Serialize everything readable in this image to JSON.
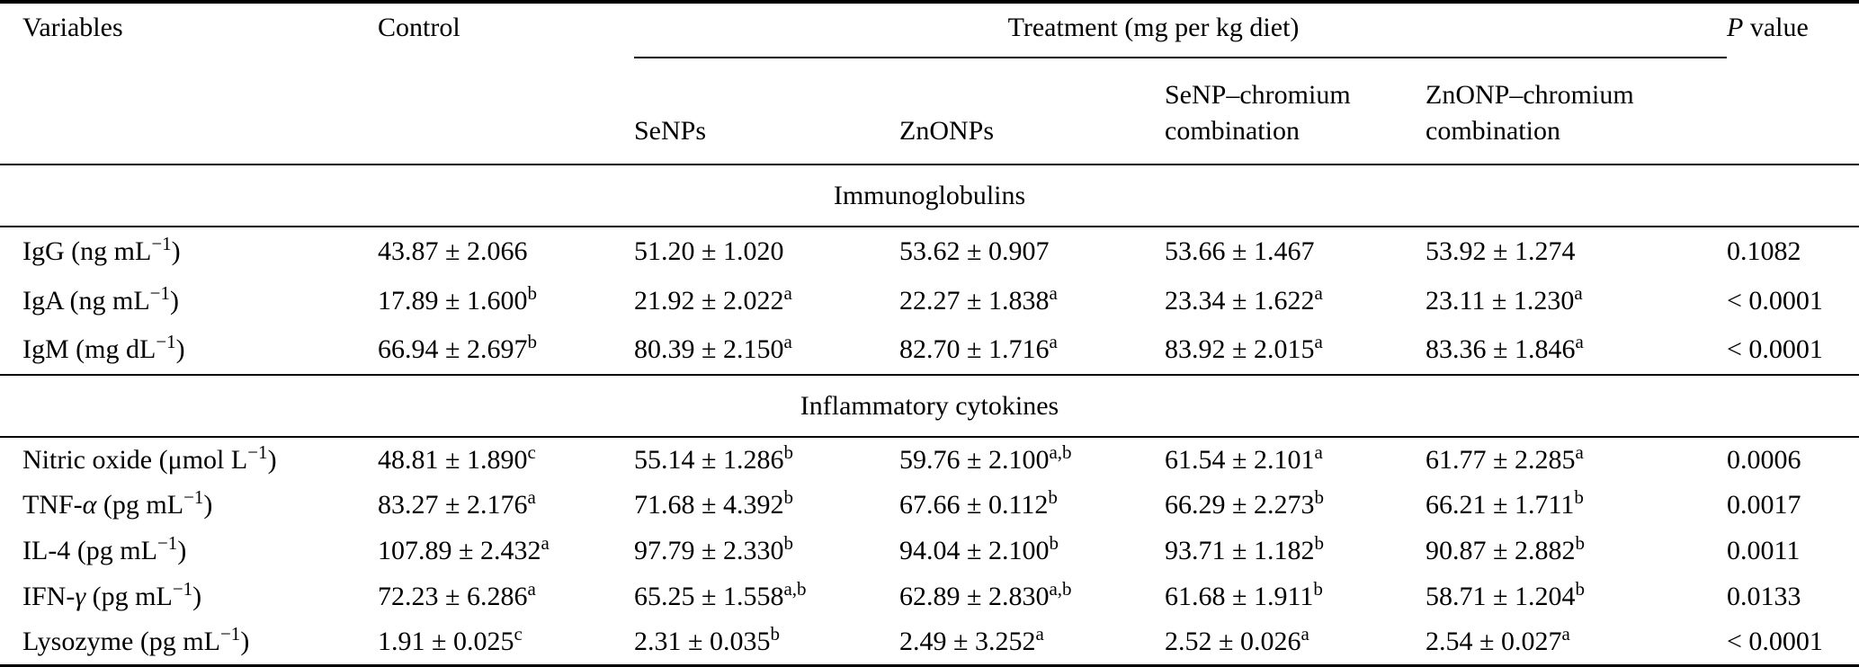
{
  "table": {
    "header": {
      "variables": "Variables",
      "control": "Control",
      "treatment": "Treatment (mg per kg diet)",
      "subcols": [
        "SeNPs",
        "ZnONPs",
        "SeNP–chromium combination",
        "ZnONP–chromium combination"
      ],
      "p_italic": "P",
      "p_word": "value"
    },
    "sections": [
      {
        "title": "Immunoglobulins",
        "rows": [
          {
            "label_parts": [
              {
                "t": "IgG"
              }
            ],
            "unit_open": " (ng mL",
            "unit_exp": "−1",
            "unit_close": ")",
            "cells": [
              {
                "v": "43.87 ± 2.066",
                "sup": ""
              },
              {
                "v": "51.20 ± 1.020",
                "sup": ""
              },
              {
                "v": "53.62 ± 0.907",
                "sup": ""
              },
              {
                "v": "53.66 ± 1.467",
                "sup": ""
              },
              {
                "v": "53.92 ± 1.274",
                "sup": ""
              }
            ],
            "p": "0.1082"
          },
          {
            "label_parts": [
              {
                "t": "IgA"
              }
            ],
            "unit_open": " (ng mL",
            "unit_exp": "−1",
            "unit_close": ")",
            "cells": [
              {
                "v": "17.89 ± 1.600",
                "sup": "b"
              },
              {
                "v": "21.92 ± 2.022",
                "sup": "a"
              },
              {
                "v": "22.27 ± 1.838",
                "sup": "a"
              },
              {
                "v": "23.34 ± 1.622",
                "sup": "a"
              },
              {
                "v": "23.11 ± 1.230",
                "sup": "a"
              }
            ],
            "p": "< 0.0001"
          },
          {
            "label_parts": [
              {
                "t": "IgM"
              }
            ],
            "unit_open": " (mg dL",
            "unit_exp": "−1",
            "unit_close": ")",
            "cells": [
              {
                "v": "66.94 ± 2.697",
                "sup": "b"
              },
              {
                "v": "80.39 ± 2.150",
                "sup": "a"
              },
              {
                "v": "82.70 ± 1.716",
                "sup": "a"
              },
              {
                "v": "83.92 ± 2.015",
                "sup": "a"
              },
              {
                "v": "83.36 ± 1.846",
                "sup": "a"
              }
            ],
            "p": "< 0.0001"
          }
        ]
      },
      {
        "title": "Inflammatory cytokines",
        "rows": [
          {
            "label_parts": [
              {
                "t": "Nitric oxide"
              }
            ],
            "unit_open": " (μmol L",
            "unit_exp": "−1",
            "unit_close": ")",
            "cells": [
              {
                "v": "48.81 ± 1.890",
                "sup": "c"
              },
              {
                "v": "55.14 ± 1.286",
                "sup": "b"
              },
              {
                "v": "59.76 ± 2.100",
                "sup": "a,b"
              },
              {
                "v": "61.54 ± 2.101",
                "sup": "a"
              },
              {
                "v": "61.77 ± 2.285",
                "sup": "a"
              }
            ],
            "p": "0.0006"
          },
          {
            "label_parts": [
              {
                "t": "TNF-"
              },
              {
                "t": "α",
                "i": true
              }
            ],
            "unit_open": " (pg mL",
            "unit_exp": "−1",
            "unit_close": ")",
            "cells": [
              {
                "v": "83.27 ± 2.176",
                "sup": "a"
              },
              {
                "v": "71.68 ± 4.392",
                "sup": "b"
              },
              {
                "v": "67.66 ± 0.112",
                "sup": "b"
              },
              {
                "v": "66.29 ± 2.273",
                "sup": "b"
              },
              {
                "v": "66.21 ± 1.711",
                "sup": "b"
              }
            ],
            "p": "0.0017"
          },
          {
            "label_parts": [
              {
                "t": "IL-4"
              }
            ],
            "unit_open": " (pg mL",
            "unit_exp": "−1",
            "unit_close": ")",
            "cells": [
              {
                "v": "107.89 ± 2.432",
                "sup": "a"
              },
              {
                "v": "97.79 ± 2.330",
                "sup": "b"
              },
              {
                "v": "94.04 ± 2.100",
                "sup": "b"
              },
              {
                "v": "93.71 ± 1.182",
                "sup": "b"
              },
              {
                "v": "90.87 ± 2.882",
                "sup": "b"
              }
            ],
            "p": "0.0011"
          },
          {
            "label_parts": [
              {
                "t": "IFN-"
              },
              {
                "t": "γ",
                "i": true
              }
            ],
            "unit_open": " (pg mL",
            "unit_exp": "−1",
            "unit_close": ")",
            "cells": [
              {
                "v": "72.23 ± 6.286",
                "sup": "a"
              },
              {
                "v": "65.25 ± 1.558",
                "sup": "a,b"
              },
              {
                "v": "62.89 ± 2.830",
                "sup": "a,b"
              },
              {
                "v": "61.68 ± 1.911",
                "sup": "b"
              },
              {
                "v": "58.71 ± 1.204",
                "sup": "b"
              }
            ],
            "p": "0.0133"
          },
          {
            "label_parts": [
              {
                "t": "Lysozyme"
              }
            ],
            "unit_open": " (pg mL",
            "unit_exp": "−1",
            "unit_close": ")",
            "cells": [
              {
                "v": "1.91 ± 0.025",
                "sup": "c"
              },
              {
                "v": "2.31 ± 0.035",
                "sup": "b"
              },
              {
                "v": "2.49 ± 3.252",
                "sup": "a"
              },
              {
                "v": "2.52 ± 0.026",
                "sup": "a"
              },
              {
                "v": "2.54 ± 0.027",
                "sup": "a"
              }
            ],
            "p": "< 0.0001"
          }
        ]
      }
    ]
  }
}
